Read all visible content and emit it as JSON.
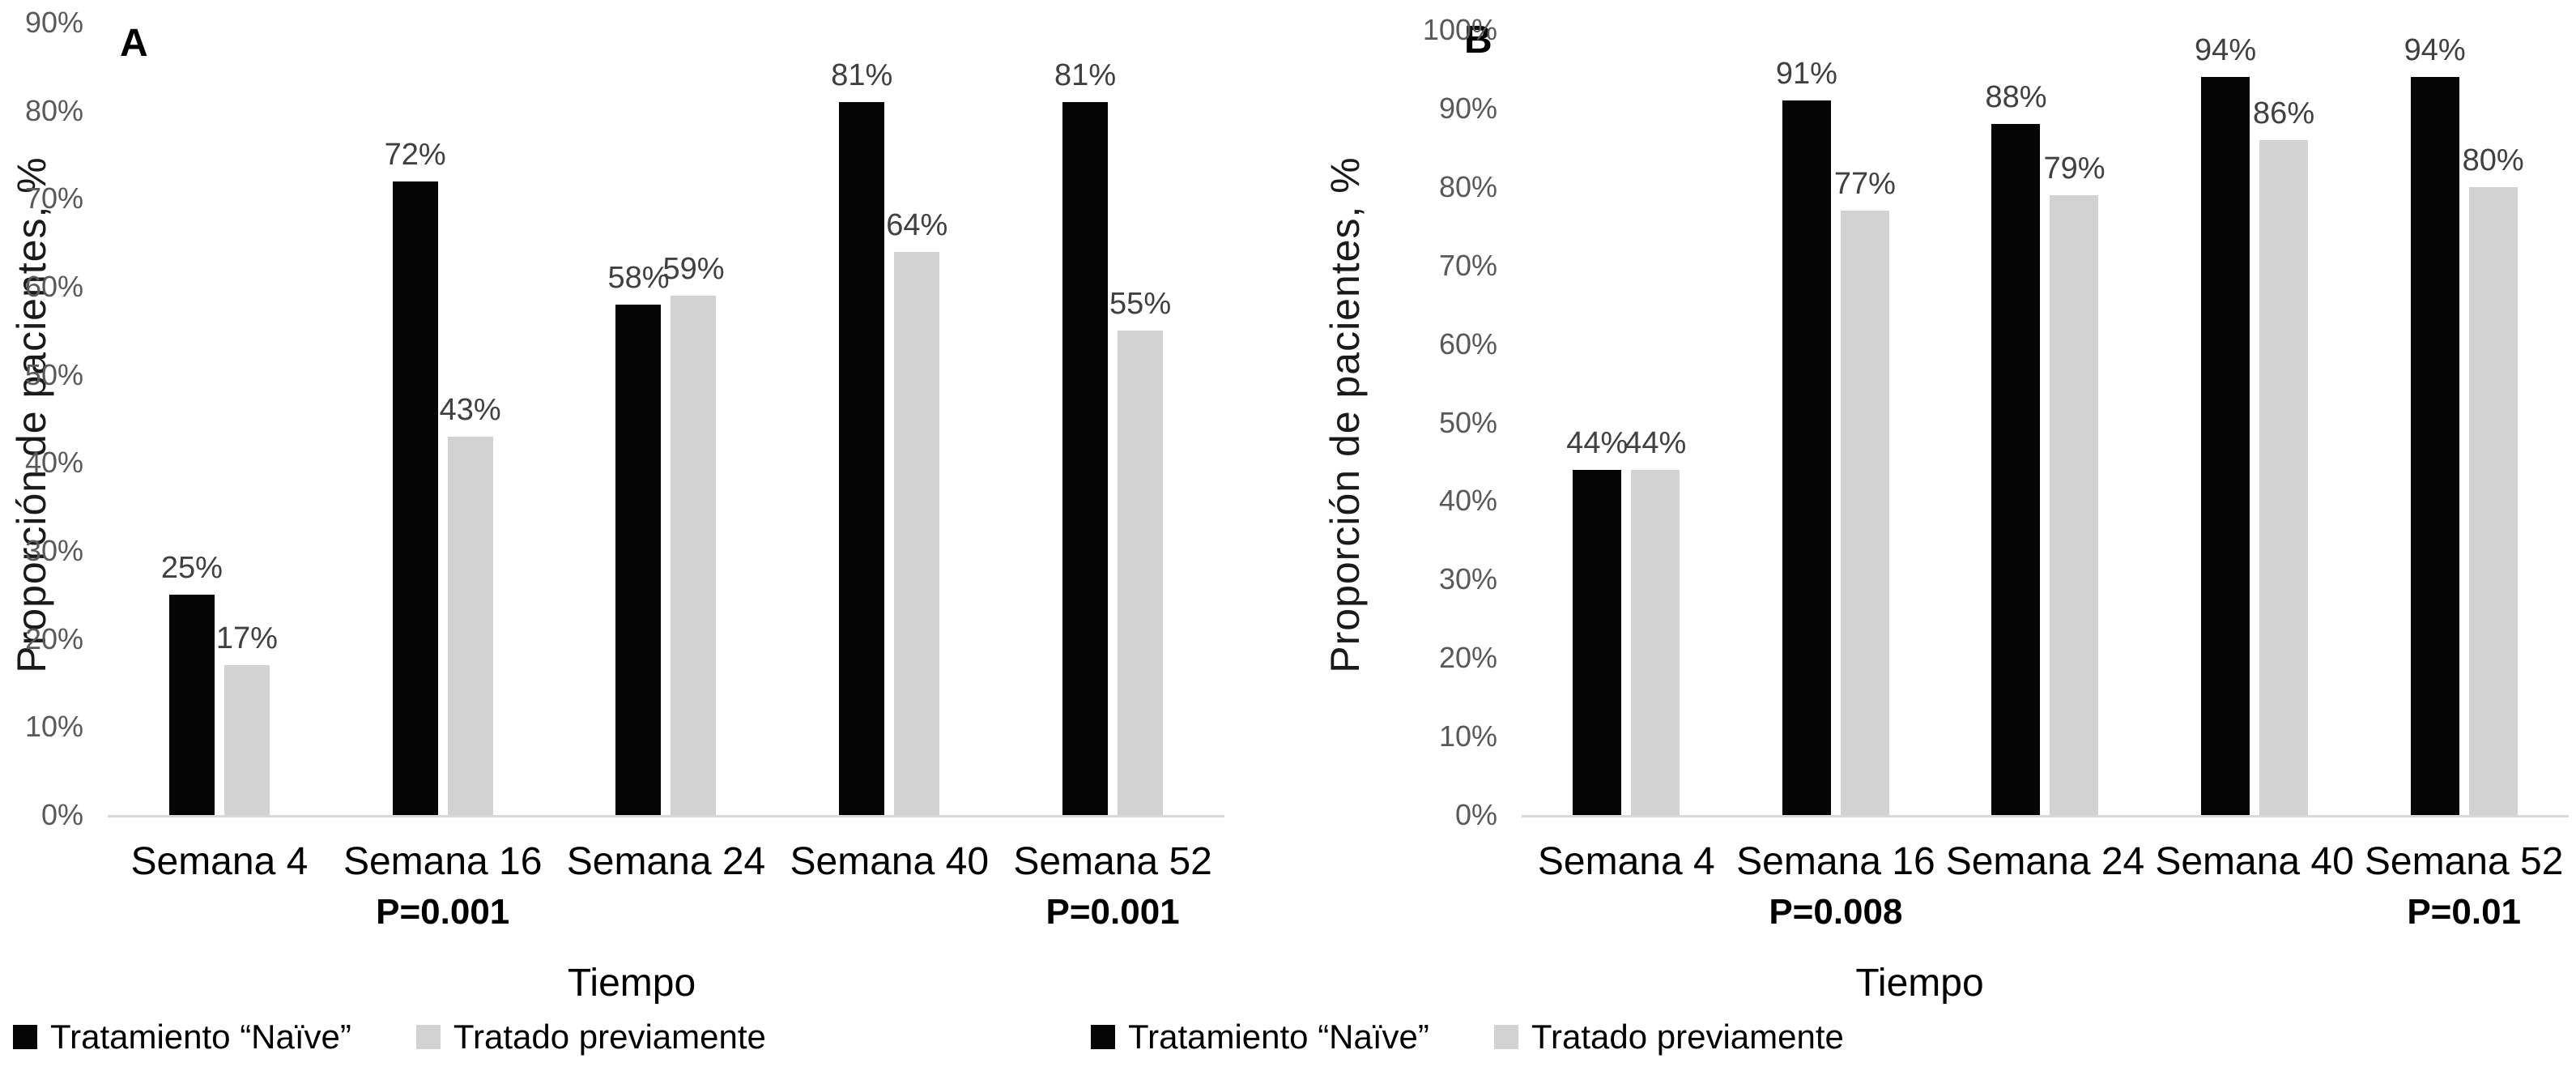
{
  "figure": {
    "background": "#ffffff",
    "axis_line_color": "#d9d9d9",
    "tick_label_color": "#595959",
    "value_label_color": "#404040",
    "text_color": "#000000"
  },
  "chart_data": [
    {
      "panel_label": "A",
      "type": "bar",
      "categories": [
        "Semana 4",
        "Semana 16",
        "Semana 24",
        "Semana 40",
        "Semana 52"
      ],
      "series": [
        {
          "name": "Tratamiento “Naïve”",
          "color": "#050505",
          "values": [
            25,
            72,
            58,
            81,
            81
          ],
          "value_labels": [
            "25%",
            "72%",
            "58%",
            "81%",
            "81%"
          ]
        },
        {
          "name": "Tratado previamente",
          "color": "#d2d2d2",
          "values": [
            17,
            43,
            59,
            64,
            55
          ],
          "value_labels": [
            "17%",
            "43%",
            "59%",
            "64%",
            "55%"
          ]
        }
      ],
      "p_values": [
        "",
        "P=0.001",
        "",
        "",
        "P=0.001"
      ],
      "xlabel": "Tiempo",
      "ylabel": "Proporción de pacientes, %",
      "ylim": [
        0,
        90
      ],
      "ytick_step": 10,
      "ytick_labels": [
        "0%",
        "10%",
        "20%",
        "30%",
        "40%",
        "50%",
        "60%",
        "70%",
        "80%",
        "90%"
      ],
      "grid": false,
      "legend_position": "bottom"
    },
    {
      "panel_label": "B",
      "type": "bar",
      "categories": [
        "Semana 4",
        "Semana 16",
        "Semana 24",
        "Semana 40",
        "Semana 52"
      ],
      "series": [
        {
          "name": "Tratamiento “Naïve”",
          "color": "#050505",
          "values": [
            44,
            91,
            88,
            94,
            94
          ],
          "value_labels": [
            "44%",
            "91%",
            "88%",
            "94%",
            "94%"
          ]
        },
        {
          "name": "Tratado previamente",
          "color": "#d2d2d2",
          "values": [
            44,
            77,
            79,
            86,
            80
          ],
          "value_labels": [
            "44%",
            "77%",
            "79%",
            "86%",
            "80%"
          ]
        }
      ],
      "p_values": [
        "",
        "P=0.008",
        "",
        "",
        "P=0.01"
      ],
      "xlabel": "Tiempo",
      "ylabel": "Proporción de pacientes, %",
      "ylim": [
        0,
        100
      ],
      "ytick_step": 10,
      "ytick_labels": [
        "0%",
        "10%",
        "20%",
        "30%",
        "40%",
        "50%",
        "60%",
        "70%",
        "80%",
        "90%",
        "100%"
      ],
      "grid": false,
      "legend_position": "bottom"
    }
  ]
}
